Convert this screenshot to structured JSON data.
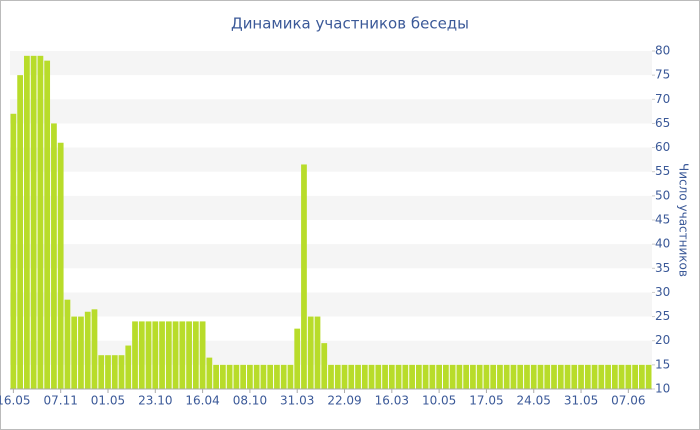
{
  "chart_data": {
    "type": "bar",
    "title": "Динамика участников беседы",
    "y_label": "Число участников",
    "categories": [
      "16.05",
      null,
      null,
      null,
      null,
      null,
      null,
      "07.11",
      null,
      null,
      null,
      null,
      null,
      null,
      "01.05",
      null,
      null,
      null,
      null,
      null,
      null,
      "23.10",
      null,
      null,
      null,
      null,
      null,
      null,
      "16.04",
      null,
      null,
      null,
      null,
      null,
      null,
      "08.10",
      null,
      null,
      null,
      null,
      null,
      null,
      "31.03",
      null,
      null,
      null,
      null,
      null,
      null,
      "22.09",
      null,
      null,
      null,
      null,
      null,
      null,
      "16.03",
      null,
      null,
      null,
      null,
      null,
      null,
      "10.05",
      null,
      null,
      null,
      null,
      null,
      null,
      "17.05",
      null,
      null,
      null,
      null,
      null,
      null,
      "24.05",
      null,
      null,
      null,
      null,
      null,
      null,
      "31.05",
      null,
      null,
      null,
      null,
      null,
      null,
      "07.06",
      null,
      null,
      null
    ],
    "values": [
      67,
      75,
      79,
      79,
      79,
      78,
      65,
      61,
      28.5,
      25,
      25,
      26,
      26.5,
      17,
      17,
      17,
      17,
      19,
      24,
      24,
      24,
      24,
      24,
      24,
      24,
      24,
      24,
      24,
      24,
      16.5,
      15,
      15,
      15,
      15,
      15,
      15,
      15,
      15,
      15,
      15,
      15,
      15,
      22.5,
      56.5,
      25,
      25,
      19.5,
      15,
      15,
      15,
      15,
      15,
      15,
      15,
      15,
      15,
      15,
      15,
      15,
      15,
      15,
      15,
      15,
      15,
      15,
      15,
      15,
      15,
      15,
      15,
      15,
      15,
      15,
      15,
      15,
      15,
      15,
      15,
      15,
      15,
      15,
      15,
      15,
      15,
      15,
      15,
      15,
      15,
      15,
      15,
      15,
      15,
      15,
      15,
      15
    ],
    "color": "#b8dc2a",
    "ylim": [
      10,
      80
    ],
    "yticks": [
      10,
      15,
      20,
      25,
      30,
      35,
      40,
      45,
      50,
      55,
      60,
      65,
      70,
      75,
      80
    ],
    "grid": true
  }
}
